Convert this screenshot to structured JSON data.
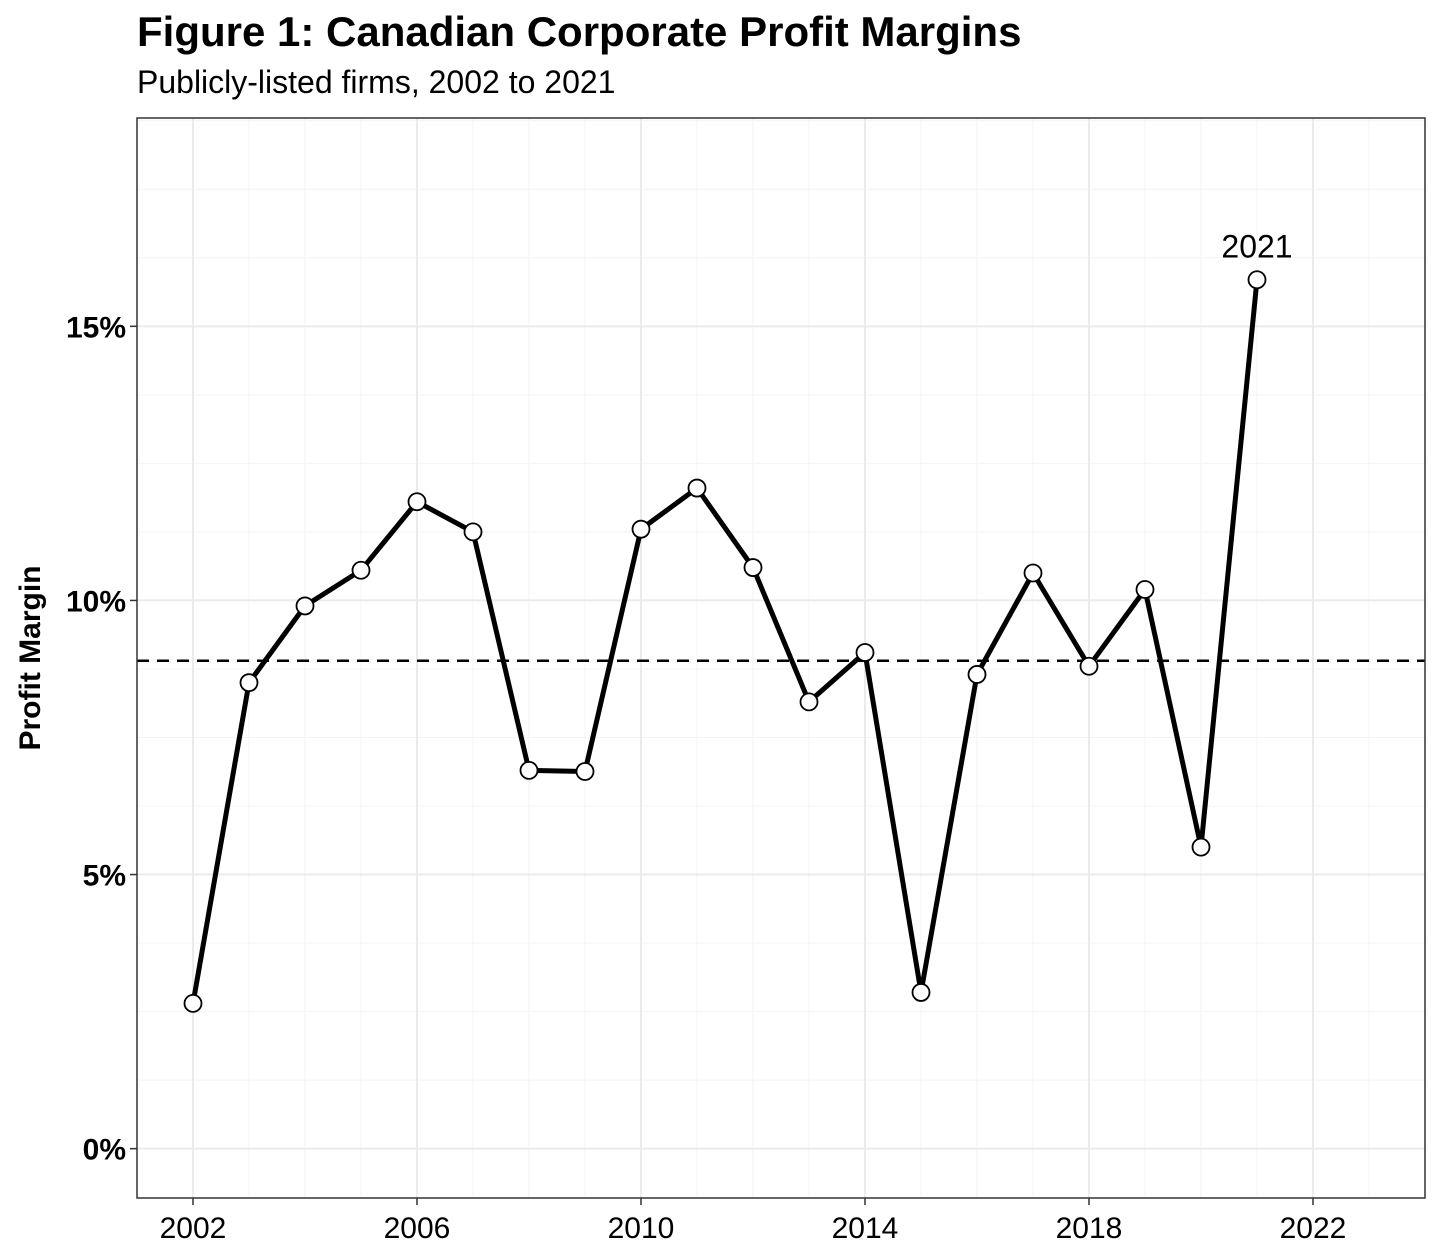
{
  "chart_data": {
    "type": "line",
    "title": "Figure 1: Canadian Corporate Profit Margins",
    "subtitle": "Publicly-listed firms, 2002 to 2021",
    "xlabel": "",
    "ylabel": "Profit Margin",
    "xlim": [
      2001,
      2024
    ],
    "ylim": [
      -0.9,
      18.8
    ],
    "x_ticks": [
      2002,
      2006,
      2010,
      2014,
      2018,
      2022
    ],
    "x_tick_labels": [
      "2002",
      "2006",
      "2010",
      "2014",
      "2018",
      "2022"
    ],
    "y_ticks": [
      0,
      5,
      10,
      15
    ],
    "y_tick_labels": [
      "0%",
      "5%",
      "10%",
      "15%"
    ],
    "grid": true,
    "reference_line": {
      "value": 8.9,
      "style": "dashed"
    },
    "series": [
      {
        "name": "Profit Margin",
        "x": [
          2002,
          2003,
          2004,
          2005,
          2006,
          2007,
          2008,
          2009,
          2010,
          2011,
          2012,
          2013,
          2014,
          2015,
          2016,
          2017,
          2018,
          2019,
          2020,
          2021
        ],
        "values": [
          2.65,
          8.5,
          9.9,
          10.55,
          11.8,
          11.25,
          6.9,
          6.88,
          11.3,
          12.05,
          10.6,
          8.15,
          9.05,
          2.85,
          8.65,
          10.5,
          8.8,
          10.2,
          5.5,
          15.85
        ]
      }
    ],
    "annotations": [
      {
        "x": 2021,
        "y": 15.85,
        "text": "2021"
      }
    ]
  },
  "colors": {
    "line": "#000000",
    "marker_fill": "#ffffff",
    "grid_major": "#ebebeb",
    "grid_minor": "#f4f4f4",
    "panel_border": "#333333",
    "background": "#ffffff"
  }
}
